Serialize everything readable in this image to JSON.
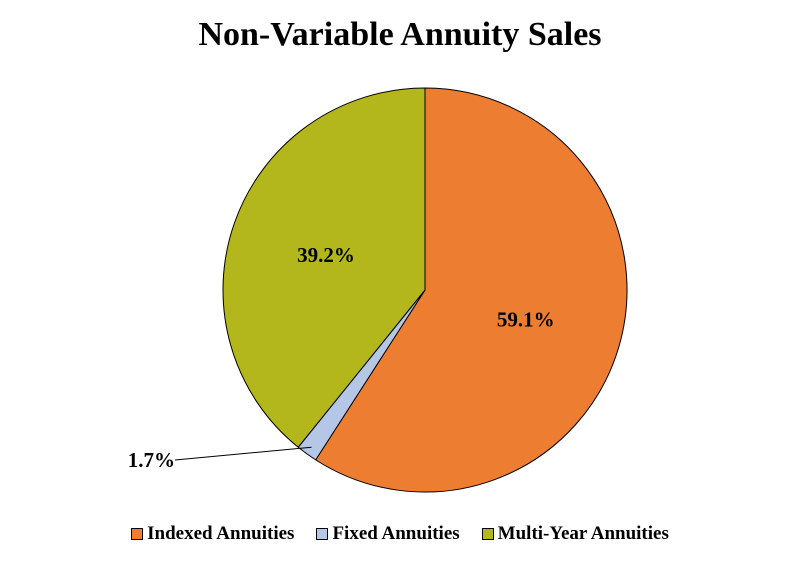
{
  "chart_data": {
    "type": "pie",
    "title": "Non-Variable Annuity Sales",
    "categories": [
      "Indexed Annuities",
      "Fixed Annuities",
      "Multi-Year Annuities"
    ],
    "values": [
      59.1,
      1.7,
      39.2
    ],
    "labels": [
      "59.1%",
      "1.7%",
      "39.2%"
    ],
    "colors": [
      "#ED7D31",
      "#B4C7E7",
      "#B3B71B"
    ],
    "legend_position": "bottom"
  }
}
